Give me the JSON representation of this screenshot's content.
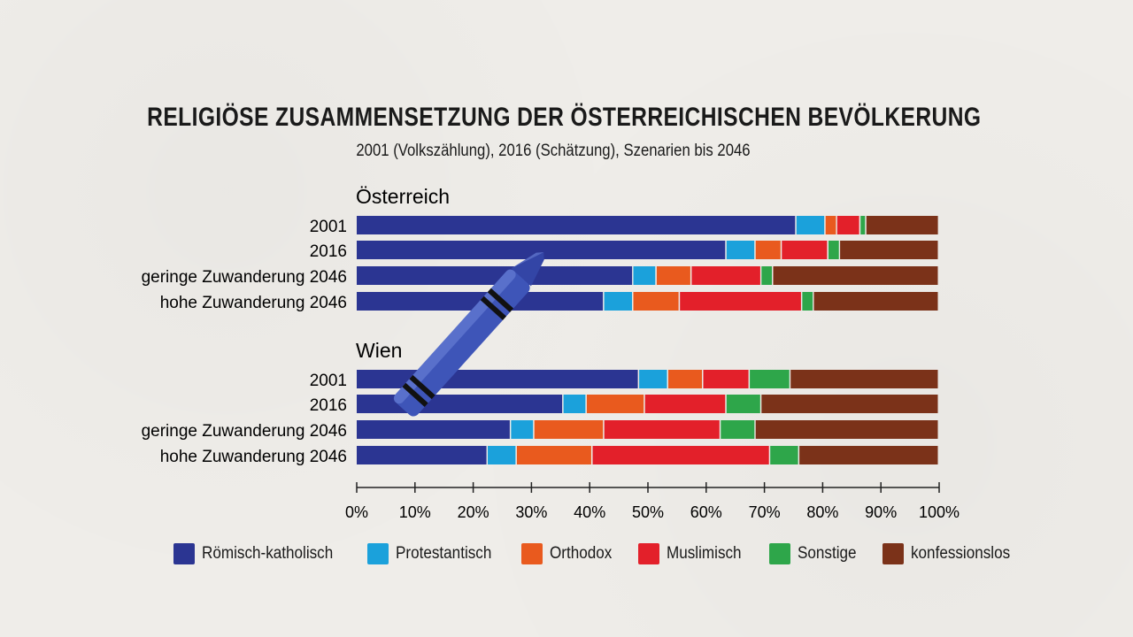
{
  "title": "RELIGIÖSE ZUSAMMENSETZUNG DER ÖSTERREICHISCHEN BEVÖLKERUNG",
  "subtitle": "2001 (Volkszählung), 2016 (Schätzung), Szenarien bis 2046",
  "colors": {
    "Römisch-katholisch": "#2b3592",
    "Protestantisch": "#1ba1db",
    "Orthodox": "#e95a1e",
    "Muslimisch": "#e3202a",
    "Sonstige": "#2ea64a",
    "konfessionslos": "#7b3219"
  },
  "chart_data": {
    "type": "bar",
    "orientation": "horizontal",
    "stacked": true,
    "xlim": [
      0,
      100
    ],
    "xticks": [
      "0%",
      "10%",
      "20%",
      "30%",
      "40%",
      "50%",
      "60%",
      "70%",
      "80%",
      "90%",
      "100%"
    ],
    "series_names": [
      "Römisch-katholisch",
      "Protestantisch",
      "Orthodox",
      "Muslimisch",
      "Sonstige",
      "konfessionslos"
    ],
    "groups": [
      {
        "name": "Österreich",
        "rows": [
          {
            "label": "2001",
            "values": [
              75.5,
              5,
              2,
              4,
              1,
              12.5
            ]
          },
          {
            "label": "2016",
            "values": [
              63.5,
              5,
              4.5,
              8,
              2,
              17
            ]
          },
          {
            "label": "geringe Zuwanderung 2046",
            "values": [
              47.5,
              4,
              6,
              12,
              2,
              28.5
            ]
          },
          {
            "label": "hohe Zuwanderung 2046",
            "values": [
              42.5,
              5,
              8,
              21,
              2,
              21.5
            ]
          }
        ]
      },
      {
        "name": "Wien",
        "rows": [
          {
            "label": "2001",
            "values": [
              48.5,
              5,
              6,
              8,
              7,
              25.5
            ]
          },
          {
            "label": "2016",
            "values": [
              35.5,
              4,
              10,
              14,
              6,
              30.5
            ]
          },
          {
            "label": "geringe Zuwanderung 2046",
            "values": [
              26.5,
              4,
              12,
              20,
              6,
              31.5
            ]
          },
          {
            "label": "hohe Zuwanderung 2046",
            "values": [
              22.5,
              5,
              13,
              30.5,
              5,
              24
            ]
          }
        ]
      }
    ]
  },
  "legend": [
    "Römisch-katholisch",
    "Protestantisch",
    "Orthodox",
    "Muslimisch",
    "Sonstige",
    "konfessionslos"
  ]
}
